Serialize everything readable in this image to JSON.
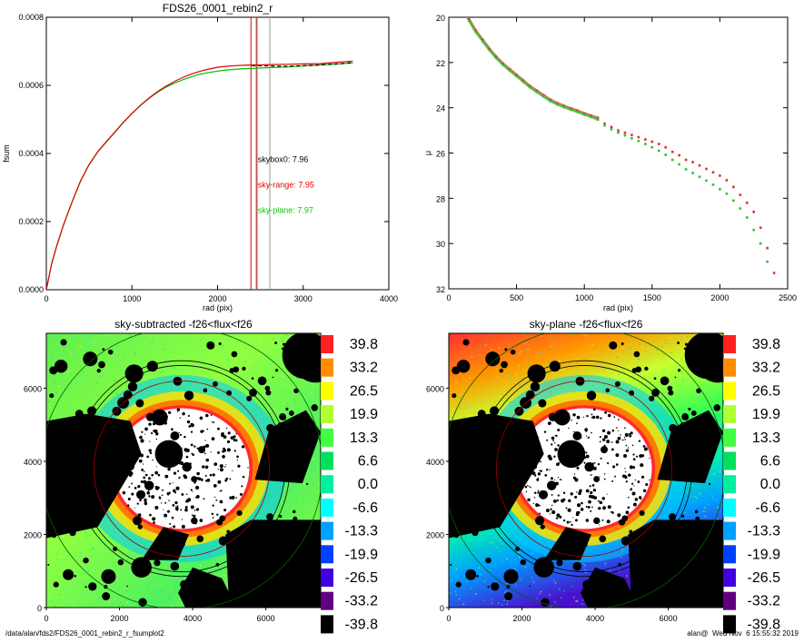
{
  "footer": {
    "path": "/data/alan/fds2/FDS26_0001_rebin2_r_fsumplot2",
    "timestamp": "alan@  Wed Nov  6 15:55:32 2019"
  },
  "chart_data": [
    {
      "id": "fsum",
      "type": "line",
      "title": "FDS26_0001_rebin2_r",
      "xlabel": "rad (pix)",
      "ylabel": "fsum",
      "xlim": [
        0,
        4000
      ],
      "ylim": [
        0,
        0.0008
      ],
      "xticks": [
        0,
        1000,
        2000,
        3000,
        4000
      ],
      "yticks": [
        0.0,
        0.0002,
        0.0004,
        0.0006,
        0.0008
      ],
      "ytick_labels": [
        "0.0000",
        "0.0002",
        "0.0004",
        "0.0006",
        "0.0008"
      ],
      "series": [
        {
          "color": "#e00000",
          "x": [
            0,
            60,
            120,
            200,
            300,
            400,
            500,
            600,
            700,
            800,
            900,
            1000,
            1100,
            1200,
            1300,
            1400,
            1500,
            1600,
            1700,
            1800,
            1900,
            2000,
            2100,
            2200,
            2300,
            2400,
            2500,
            2600,
            2800,
            3000,
            3200,
            3400,
            3580
          ],
          "y": [
            0,
            7.5e-05,
            0.000128,
            0.00019,
            0.000258,
            0.00032,
            0.000368,
            0.000405,
            0.000435,
            0.000463,
            0.000492,
            0.000518,
            0.000542,
            0.000563,
            0.000582,
            0.000598,
            0.000612,
            0.000624,
            0.000634,
            0.000642,
            0.000648,
            0.000653,
            0.000656,
            0.000658,
            0.000659,
            0.00066,
            0.00066,
            0.000661,
            0.000662,
            0.000663,
            0.000664,
            0.000668,
            0.000671
          ]
        },
        {
          "color": "#000000",
          "dashed": true,
          "x": [
            2400,
            2600,
            2800,
            3000,
            3200,
            3400,
            3580
          ],
          "y": [
            0.000658,
            0.000657,
            0.000656,
            0.000658,
            0.00066,
            0.000663,
            0.000667
          ]
        },
        {
          "color": "#00c000",
          "x": [
            0,
            60,
            120,
            200,
            300,
            400,
            500,
            600,
            700,
            800,
            900,
            1000,
            1100,
            1200,
            1300,
            1400,
            1500,
            1600,
            1700,
            1800,
            1900,
            2000,
            2100,
            2200,
            2300,
            2400,
            2500,
            2600,
            2800,
            3000,
            3200,
            3400,
            3580
          ],
          "y": [
            0,
            7.4e-05,
            0.000127,
            0.000189,
            0.000257,
            0.000319,
            0.000367,
            0.000404,
            0.000434,
            0.000462,
            0.000491,
            0.000517,
            0.000541,
            0.000562,
            0.00058,
            0.000595,
            0.000607,
            0.000617,
            0.000626,
            0.000633,
            0.000638,
            0.000642,
            0.000645,
            0.000647,
            0.000649,
            0.00065,
            0.000651,
            0.000652,
            0.000654,
            0.000657,
            0.00066,
            0.000663,
            0.000666
          ]
        }
      ],
      "vlines": [
        {
          "x": 2390,
          "color": "#e00000"
        },
        {
          "x": 2460,
          "color": "#e00000"
        },
        {
          "x": 2450,
          "color": "#999999"
        },
        {
          "x": 2610,
          "color": "#999999"
        }
      ],
      "annotations": [
        {
          "text": "skybox0:  7.96",
          "x": 2470,
          "y": 0.000375,
          "color": "#000000"
        },
        {
          "text": "sky-range:  7.95",
          "x": 2470,
          "y": 0.0003,
          "color": "#e00000"
        },
        {
          "text": "sky-plane:  7.97",
          "x": 2470,
          "y": 0.000225,
          "color": "#00cc00"
        }
      ]
    },
    {
      "id": "mu",
      "type": "scatter",
      "title": "",
      "xlabel": "rad (pix)",
      "ylabel": "μ",
      "xlim": [
        0,
        2500
      ],
      "ylim": [
        32,
        20
      ],
      "xticks": [
        0,
        500,
        1000,
        1500,
        2000,
        2500
      ],
      "yticks": [
        20,
        22,
        24,
        26,
        28,
        30,
        32
      ],
      "series": [
        {
          "color": "#e03030",
          "x": [
            100,
            150,
            200,
            250,
            300,
            350,
            400,
            450,
            500,
            550,
            600,
            650,
            700,
            750,
            800,
            850,
            900,
            950,
            1000,
            1050,
            1100,
            1150,
            1200,
            1250,
            1300,
            1350,
            1400,
            1450,
            1500,
            1550,
            1600,
            1650,
            1700,
            1750,
            1800,
            1850,
            1900,
            1950,
            2000,
            2050,
            2100,
            2150,
            2200,
            2250,
            2300,
            2350,
            2400
          ],
          "y": [
            19.4,
            20.1,
            20.6,
            21.0,
            21.4,
            21.75,
            22.05,
            22.3,
            22.55,
            22.8,
            23.05,
            23.25,
            23.45,
            23.65,
            23.8,
            23.92,
            24.03,
            24.13,
            24.25,
            24.35,
            24.45,
            24.7,
            24.85,
            25.0,
            25.1,
            25.2,
            25.3,
            25.4,
            25.5,
            25.6,
            25.75,
            25.95,
            26.1,
            26.3,
            26.4,
            26.55,
            26.7,
            26.85,
            27.0,
            27.2,
            27.5,
            27.85,
            28.2,
            28.6,
            29.3,
            30.2,
            31.3
          ]
        },
        {
          "color": "#30c030",
          "x": [
            100,
            150,
            200,
            250,
            300,
            350,
            400,
            450,
            500,
            550,
            600,
            650,
            700,
            750,
            800,
            850,
            900,
            950,
            1000,
            1050,
            1100,
            1150,
            1200,
            1250,
            1300,
            1350,
            1400,
            1450,
            1500,
            1550,
            1600,
            1650,
            1700,
            1750,
            1800,
            1850,
            1900,
            1950,
            2000,
            2050,
            2100,
            2150,
            2200,
            2250,
            2300,
            2350
          ],
          "y": [
            19.45,
            20.15,
            20.65,
            21.05,
            21.45,
            21.8,
            22.1,
            22.35,
            22.6,
            22.85,
            23.1,
            23.3,
            23.5,
            23.7,
            23.85,
            23.97,
            24.08,
            24.18,
            24.3,
            24.4,
            24.52,
            24.78,
            24.95,
            25.1,
            25.22,
            25.35,
            25.47,
            25.6,
            25.75,
            25.9,
            26.08,
            26.3,
            26.5,
            26.72,
            26.88,
            27.05,
            27.22,
            27.4,
            27.6,
            27.8,
            28.1,
            28.45,
            28.85,
            29.4,
            30.0,
            30.8
          ]
        }
      ]
    },
    {
      "id": "sky-subtracted-image",
      "type": "heatmap",
      "title": "sky-subtracted -f26<flux<f26",
      "xlim": [
        0,
        7500
      ],
      "ylim": [
        0,
        7500
      ],
      "xticks": [
        0,
        2000,
        4000,
        6000
      ],
      "yticks": [
        0,
        2000,
        4000,
        6000
      ],
      "background_model": "residual"
    },
    {
      "id": "sky-plane-image",
      "type": "heatmap",
      "title": "sky-plane -f26<flux<f26",
      "xlim": [
        0,
        7500
      ],
      "ylim": [
        0,
        7500
      ],
      "xticks": [
        0,
        2000,
        4000,
        6000
      ],
      "yticks": [
        0,
        2000,
        4000,
        6000
      ],
      "background_model": "gradient"
    }
  ],
  "colorbar": {
    "labels": [
      "39.8",
      "33.2",
      "26.5",
      "19.9",
      "13.3",
      "6.6",
      "0.0",
      "-6.6",
      "-13.3",
      "-19.9",
      "-26.5",
      "-33.2",
      "-39.8"
    ],
    "colors": [
      "#ff2020",
      "#ff8c00",
      "#ffff00",
      "#b0ff30",
      "#40ff40",
      "#00e060",
      "#00f0a0",
      "#00ffff",
      "#00a0ff",
      "#0040ff",
      "#4000e0",
      "#600080",
      "#000000"
    ]
  },
  "image_features": {
    "masks": [
      {
        "x": 7100,
        "y": 6900,
        "r": 650
      },
      {
        "x": 7350,
        "y": 6700,
        "r": 550
      },
      {
        "x": 3350,
        "y": 4200,
        "r": 380
      },
      {
        "x": 3100,
        "y": 5200,
        "r": 220
      },
      {
        "x": 1200,
        "y": 6800,
        "r": 200
      },
      {
        "x": 2400,
        "y": 6400,
        "r": 250
      },
      {
        "x": 2600,
        "y": 1100,
        "r": 280
      },
      {
        "x": 1700,
        "y": 850,
        "r": 200
      },
      {
        "x": 400,
        "y": 6600,
        "r": 180
      },
      {
        "x": 6500,
        "y": 700,
        "r": 300
      },
      {
        "x": 600,
        "y": 900,
        "r": 150
      },
      {
        "x": 2900,
        "y": 6600,
        "r": 150
      },
      {
        "x": 5900,
        "y": 6200,
        "r": 120
      },
      {
        "x": 900,
        "y": 5300,
        "r": 110
      },
      {
        "x": 2100,
        "y": 5600,
        "r": 160
      },
      {
        "x": 3900,
        "y": 5800,
        "r": 130
      }
    ],
    "mask_polygons": [
      [
        [
          0,
          1900
        ],
        [
          1400,
          2200
        ],
        [
          2600,
          4200
        ],
        [
          2300,
          5100
        ],
        [
          1100,
          5300
        ],
        [
          0,
          5100
        ]
      ],
      [
        [
          5700,
          3500
        ],
        [
          6100,
          4900
        ],
        [
          7100,
          5400
        ],
        [
          7500,
          4800
        ],
        [
          7000,
          3400
        ]
      ],
      [
        [
          5000,
          0
        ],
        [
          4900,
          2000
        ],
        [
          5600,
          2400
        ],
        [
          7500,
          2400
        ],
        [
          7500,
          0
        ]
      ],
      [
        [
          3800,
          0
        ],
        [
          3600,
          400
        ],
        [
          4000,
          1100
        ],
        [
          4800,
          800
        ],
        [
          5200,
          0
        ]
      ],
      [
        [
          2600,
          1300
        ],
        [
          3200,
          2200
        ],
        [
          3900,
          2000
        ],
        [
          3600,
          1300
        ]
      ]
    ],
    "galaxy": {
      "cx": 3700,
      "cy": 3800,
      "rx": 1850,
      "ry": 1650
    },
    "ellipses": [
      {
        "rx": 3850,
        "ry": 3850,
        "color": "#006000"
      },
      {
        "rx": 2950,
        "ry": 2950,
        "color": "#000000"
      },
      {
        "rx": 2820,
        "ry": 2820,
        "color": "#000000"
      },
      {
        "rx": 2400,
        "ry": 2400,
        "color": "#a00000"
      }
    ]
  }
}
